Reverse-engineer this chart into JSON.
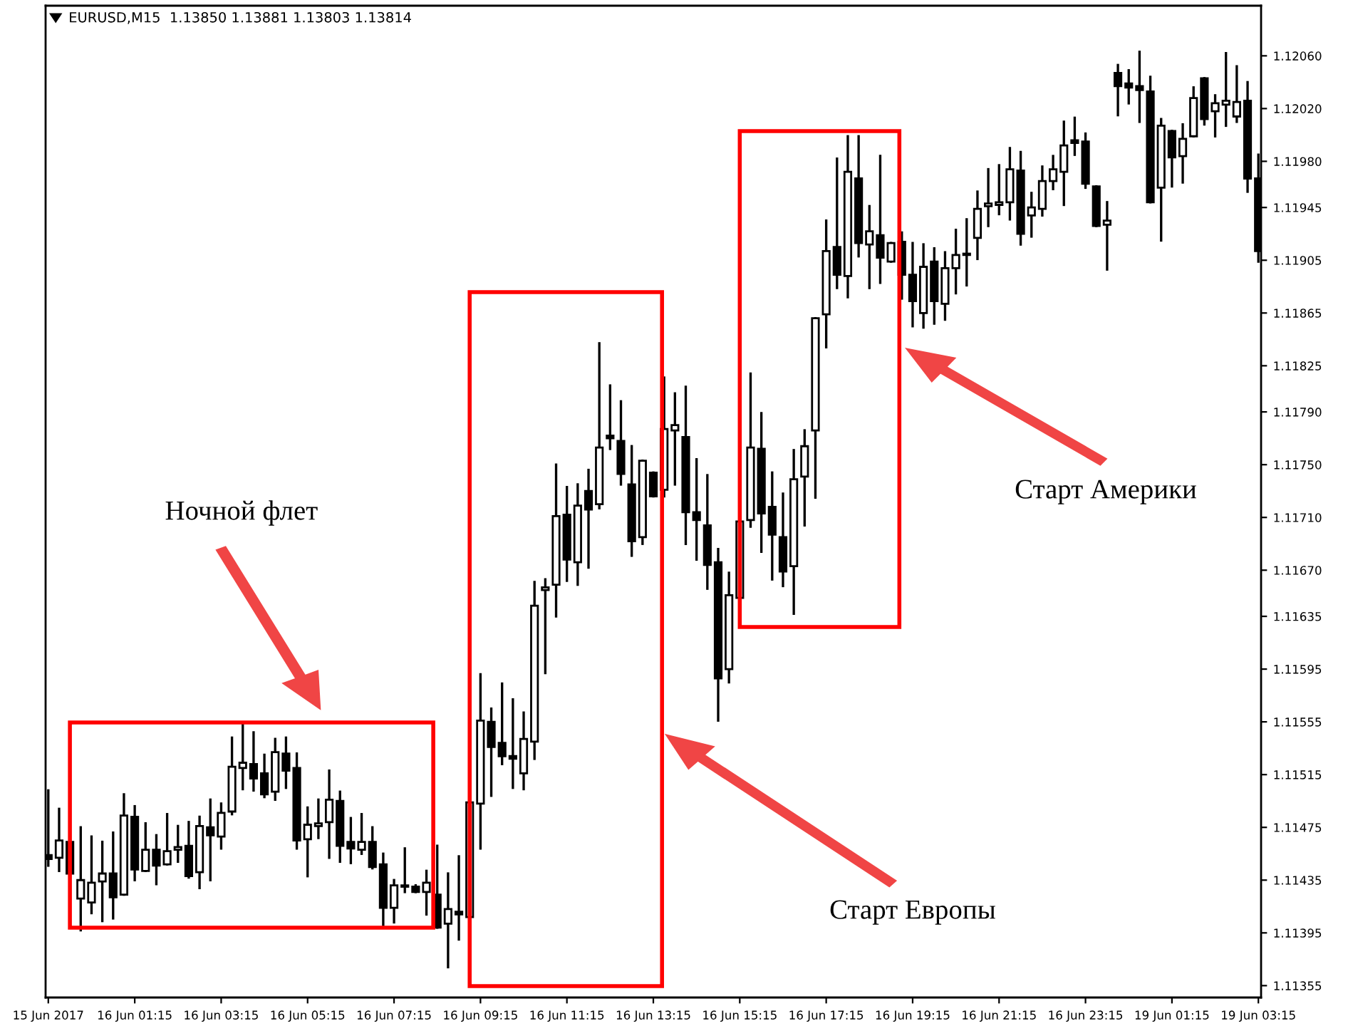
{
  "chart_data": {
    "type": "candlestick",
    "title": "EURUSD,M15  1.13850 1.13881 1.13803 1.13814",
    "categories": [
      "15 Jun 2017",
      null,
      null,
      null,
      null,
      null,
      null,
      null,
      "16 Jun 01:15",
      null,
      null,
      null,
      null,
      null,
      null,
      null,
      "16 Jun 03:15",
      null,
      null,
      null,
      null,
      null,
      null,
      null,
      "16 Jun 05:15",
      null,
      null,
      null,
      null,
      null,
      null,
      null,
      "16 Jun 07:15",
      null,
      null,
      null,
      null,
      null,
      null,
      null,
      "16 Jun 09:15",
      null,
      null,
      null,
      null,
      null,
      null,
      null,
      "16 Jun 11:15",
      null,
      null,
      null,
      null,
      null,
      null,
      null,
      "16 Jun 13:15",
      null,
      null,
      null,
      null,
      null,
      null,
      null,
      "16 Jun 15:15",
      null,
      null,
      null,
      null,
      null,
      null,
      null,
      "16 Jun 17:15",
      null,
      null,
      null,
      null,
      null,
      null,
      null,
      "16 Jun 19:15",
      null,
      null,
      null,
      null,
      null,
      null,
      null,
      "16 Jun 21:15",
      null,
      null,
      null,
      null,
      null,
      null,
      null,
      "16 Jun 23:15",
      null,
      null,
      null,
      null,
      null,
      null,
      null,
      "19 Jun 01:15",
      null,
      null,
      null,
      null,
      null,
      null,
      null,
      "19 Jun 03:15"
    ],
    "ohlc": [
      [
        1.11454,
        1.11503,
        1.11446,
        1.11451
      ],
      [
        1.11452,
        1.11489,
        1.11442,
        1.11465
      ],
      [
        1.11464,
        1.11464,
        1.1144,
        1.1144
      ],
      [
        1.11421,
        1.11475,
        1.11397,
        1.11435
      ],
      [
        1.11418,
        1.11468,
        1.1141,
        1.11433
      ],
      [
        1.11434,
        1.11464,
        1.11404,
        1.1144
      ],
      [
        1.1144,
        1.11471,
        1.11406,
        1.11422
      ],
      [
        1.11424,
        1.115,
        1.11424,
        1.11484
      ],
      [
        1.11483,
        1.11491,
        1.11435,
        1.11443
      ],
      [
        1.11442,
        1.11478,
        1.11442,
        1.11458
      ],
      [
        1.11458,
        1.11469,
        1.11432,
        1.11446
      ],
      [
        1.11447,
        1.11485,
        1.11447,
        1.11457
      ],
      [
        1.11458,
        1.11476,
        1.11449,
        1.1146
      ],
      [
        1.11461,
        1.11479,
        1.11437,
        1.11438
      ],
      [
        1.11441,
        1.11483,
        1.11429,
        1.11476
      ],
      [
        1.11475,
        1.11496,
        1.11435,
        1.11469
      ],
      [
        1.11468,
        1.11493,
        1.11459,
        1.11486
      ],
      [
        1.11487,
        1.11543,
        1.11485,
        1.11521
      ],
      [
        1.1152,
        1.11553,
        1.11504,
        1.11524
      ],
      [
        1.11523,
        1.11547,
        1.11503,
        1.11512
      ],
      [
        1.11516,
        1.1153,
        1.11498,
        1.115
      ],
      [
        1.11502,
        1.11542,
        1.11496,
        1.11532
      ],
      [
        1.11531,
        1.11543,
        1.11505,
        1.11518
      ],
      [
        1.1152,
        1.11531,
        1.11459,
        1.11465
      ],
      [
        1.11466,
        1.1149,
        1.11438,
        1.11477
      ],
      [
        1.11476,
        1.11496,
        1.11467,
        1.11478
      ],
      [
        1.11479,
        1.11518,
        1.11452,
        1.11496
      ],
      [
        1.11495,
        1.11502,
        1.11449,
        1.11461
      ],
      [
        1.11464,
        1.11482,
        1.11448,
        1.11459
      ],
      [
        1.11458,
        1.11485,
        1.11455,
        1.11464
      ],
      [
        1.11464,
        1.11475,
        1.11444,
        1.11445
      ],
      [
        1.11447,
        1.11455,
        1.11401,
        1.11414
      ],
      [
        1.11414,
        1.11435,
        1.11403,
        1.11431
      ],
      [
        1.11431,
        1.11459,
        1.11426,
        1.1143
      ],
      [
        1.1143,
        1.11431,
        1.11426,
        1.11426
      ],
      [
        1.11426,
        1.11442,
        1.11409,
        1.11433
      ],
      [
        1.11424,
        1.11461,
        1.11399,
        1.11399
      ],
      [
        1.11402,
        1.1144,
        1.11369,
        1.11413
      ],
      [
        1.11411,
        1.11453,
        1.1139,
        1.11409
      ],
      [
        1.11407,
        1.11494,
        1.11407,
        1.11494
      ],
      [
        1.11493,
        1.11591,
        1.11459,
        1.11556
      ],
      [
        1.11555,
        1.11565,
        1.11499,
        1.11536
      ],
      [
        1.11539,
        1.11584,
        1.11523,
        1.11529
      ],
      [
        1.11529,
        1.11572,
        1.11505,
        1.11527
      ],
      [
        1.11516,
        1.11562,
        1.11504,
        1.11542
      ],
      [
        1.1154,
        1.11661,
        1.11527,
        1.11643
      ],
      [
        1.11655,
        1.11663,
        1.11592,
        1.11657
      ],
      [
        1.11659,
        1.1175,
        1.11635,
        1.11711
      ],
      [
        1.11712,
        1.11733,
        1.11662,
        1.11678
      ],
      [
        1.11676,
        1.11735,
        1.11659,
        1.11719
      ],
      [
        1.1173,
        1.11746,
        1.11672,
        1.11716
      ],
      [
        1.1172,
        1.11842,
        1.11717,
        1.11763
      ],
      [
        1.11772,
        1.1181,
        1.11762,
        1.1177
      ],
      [
        1.11768,
        1.11798,
        1.11735,
        1.11743
      ],
      [
        1.11735,
        1.11764,
        1.11681,
        1.11692
      ],
      [
        1.11695,
        1.11753,
        1.1169,
        1.11753
      ],
      [
        1.11744,
        1.11744,
        1.11726,
        1.11726
      ],
      [
        1.11731,
        1.11816,
        1.11726,
        1.11777
      ],
      [
        1.11776,
        1.11804,
        1.11735,
        1.1178
      ],
      [
        1.11771,
        1.11809,
        1.1169,
        1.11714
      ],
      [
        1.11714,
        1.11754,
        1.11678,
        1.11708
      ],
      [
        1.11704,
        1.11742,
        1.11656,
        1.11674
      ],
      [
        1.11676,
        1.11686,
        1.11556,
        1.11588
      ],
      [
        1.11595,
        1.11668,
        1.11585,
        1.11651
      ],
      [
        1.11649,
        1.11707,
        1.11649,
        1.11707
      ],
      [
        1.11708,
        1.11819,
        1.11703,
        1.11763
      ],
      [
        1.11762,
        1.11789,
        1.11684,
        1.11713
      ],
      [
        1.11718,
        1.11744,
        1.11663,
        1.11697
      ],
      [
        1.11695,
        1.11728,
        1.11658,
        1.11669
      ],
      [
        1.11673,
        1.11761,
        1.11637,
        1.11739
      ],
      [
        1.11741,
        1.11776,
        1.11704,
        1.11764
      ],
      [
        1.11776,
        1.11861,
        1.11725,
        1.11861
      ],
      [
        1.11864,
        1.11935,
        1.11839,
        1.11912
      ],
      [
        1.11915,
        1.11982,
        1.11884,
        1.11894
      ],
      [
        1.11893,
        1.11999,
        1.11877,
        1.11972
      ],
      [
        1.11967,
        1.11999,
        1.11908,
        1.11918
      ],
      [
        1.11917,
        1.11946,
        1.11884,
        1.11927
      ],
      [
        1.11924,
        1.11984,
        1.11888,
        1.11907
      ],
      [
        1.11904,
        1.11918,
        1.11904,
        1.11918
      ],
      [
        1.11919,
        1.11926,
        1.11876,
        1.11894
      ],
      [
        1.11894,
        1.11918,
        1.11855,
        1.11874
      ],
      [
        1.11865,
        1.11917,
        1.11854,
        1.119
      ],
      [
        1.11904,
        1.11914,
        1.11857,
        1.11874
      ],
      [
        1.11872,
        1.11911,
        1.1186,
        1.11899
      ],
      [
        1.11899,
        1.11928,
        1.1188,
        1.11909
      ],
      [
        1.1191,
        1.11936,
        1.11886,
        1.11909
      ],
      [
        1.11922,
        1.11957,
        1.11906,
        1.11944
      ],
      [
        1.11946,
        1.11974,
        1.11931,
        1.11948
      ],
      [
        1.11947,
        1.11977,
        1.1194,
        1.11949
      ],
      [
        1.11949,
        1.1199,
        1.11936,
        1.11974
      ],
      [
        1.11973,
        1.11987,
        1.11917,
        1.11925
      ],
      [
        1.11939,
        1.11956,
        1.11923,
        1.11945
      ],
      [
        1.11944,
        1.11976,
        1.11939,
        1.11965
      ],
      [
        1.11965,
        1.11984,
        1.11959,
        1.11974
      ],
      [
        1.11972,
        1.1201,
        1.11947,
        1.11992
      ],
      [
        1.11996,
        1.12013,
        1.11985,
        1.11994
      ],
      [
        1.11995,
        1.12001,
        1.1196,
        1.11963
      ],
      [
        1.11961,
        1.11961,
        1.11931,
        1.11931
      ],
      [
        1.11932,
        1.11949,
        1.11898,
        1.11935
      ],
      [
        1.12047,
        1.12053,
        1.12015,
        1.12037
      ],
      [
        1.12039,
        1.12049,
        1.12024,
        1.12036
      ],
      [
        1.12037,
        1.12063,
        1.1201,
        1.12034
      ],
      [
        1.12033,
        1.12044,
        1.11949,
        1.11949
      ],
      [
        1.1196,
        1.12012,
        1.1192,
        1.12007
      ],
      [
        1.12003,
        1.12003,
        1.11961,
        1.11983
      ],
      [
        1.11984,
        1.12008,
        1.11964,
        1.11997
      ],
      [
        1.11999,
        1.12036,
        1.11999,
        1.12028
      ],
      [
        1.12043,
        1.12043,
        1.12008,
        1.12012
      ],
      [
        1.12018,
        1.1203,
        1.11999,
        1.12024
      ],
      [
        1.12023,
        1.12062,
        1.12007,
        1.12026
      ],
      [
        1.12014,
        1.12052,
        1.1201,
        1.12025
      ],
      [
        1.12026,
        1.1204,
        1.11957,
        1.11967
      ],
      [
        1.11967,
        1.11985,
        1.11904,
        1.11912
      ]
    ],
    "ylim": [
      1.11346,
      1.12098
    ],
    "yticks": [
      {
        "value": 1.11355,
        "label": "1.11355"
      },
      {
        "value": 1.11395,
        "label": "1.11395"
      },
      {
        "value": 1.11435,
        "label": "1.11435"
      },
      {
        "value": 1.11475,
        "label": "1.11475"
      },
      {
        "value": 1.11515,
        "label": "1.11515"
      },
      {
        "value": 1.11555,
        "label": "1.11555"
      },
      {
        "value": 1.11595,
        "label": "1.11595"
      },
      {
        "value": 1.11635,
        "label": "1.11635"
      },
      {
        "value": 1.1167,
        "label": "1.11670"
      },
      {
        "value": 1.1171,
        "label": "1.11710"
      },
      {
        "value": 1.1175,
        "label": "1.11750"
      },
      {
        "value": 1.1179,
        "label": "1.11790"
      },
      {
        "value": 1.11825,
        "label": "1.11825"
      },
      {
        "value": 1.11865,
        "label": "1.11865"
      },
      {
        "value": 1.11905,
        "label": "1.11905"
      },
      {
        "value": 1.11945,
        "label": "1.11945"
      },
      {
        "value": 1.1198,
        "label": "1.11980"
      },
      {
        "value": 1.1202,
        "label": "1.12020"
      },
      {
        "value": 1.1206,
        "label": "1.12060"
      }
    ],
    "annotations": [
      "Ночной флет",
      "Старт Европы",
      "Старт Америки"
    ],
    "grid": false
  }
}
